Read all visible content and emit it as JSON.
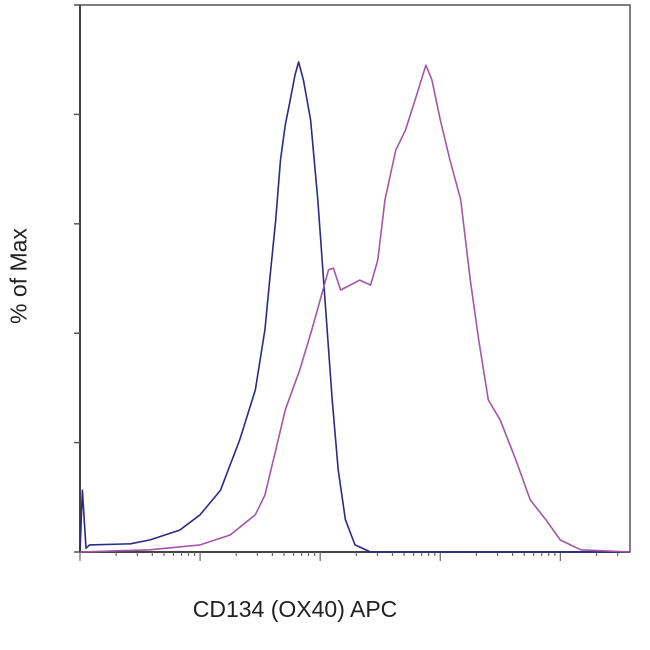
{
  "chart_data": {
    "type": "line",
    "title": "",
    "xlabel": "CD134 (OX40) APC",
    "ylabel": "% of Max",
    "x_scale": "log (decades, no tick labels shown)",
    "xlim": [
      0,
      4.58
    ],
    "ylim": [
      0,
      100
    ],
    "y_ticks": [
      0,
      20,
      40,
      60,
      80,
      100
    ],
    "x_major_ticks": [
      0,
      1,
      2,
      3,
      4
    ],
    "grid": false,
    "legend": "none",
    "series": [
      {
        "color": "#2b2b86",
        "points": [
          [
            0,
            0
          ],
          [
            0.02,
            11.3
          ],
          [
            0.05,
            0.7
          ],
          [
            0.08,
            1.3
          ],
          [
            0.42,
            1.5
          ],
          [
            0.58,
            2.2
          ],
          [
            0.83,
            4.0
          ],
          [
            1.0,
            6.8
          ],
          [
            1.17,
            11.3
          ],
          [
            1.33,
            20.5
          ],
          [
            1.46,
            29.6
          ],
          [
            1.54,
            40.6
          ],
          [
            1.58,
            49.7
          ],
          [
            1.63,
            60.7
          ],
          [
            1.67,
            71.7
          ],
          [
            1.71,
            78.1
          ],
          [
            1.75,
            82.6
          ],
          [
            1.79,
            87.2
          ],
          [
            1.82,
            89.6
          ],
          [
            1.86,
            86.3
          ],
          [
            1.92,
            79.0
          ],
          [
            1.98,
            64.4
          ],
          [
            2.04,
            46.1
          ],
          [
            2.1,
            27.8
          ],
          [
            2.15,
            15.0
          ],
          [
            2.21,
            5.9
          ],
          [
            2.29,
            1.3
          ],
          [
            2.42,
            0
          ],
          [
            4.58,
            0
          ]
        ]
      },
      {
        "color": "#a456a8",
        "points": [
          [
            0,
            0
          ],
          [
            0.58,
            0.4
          ],
          [
            1.0,
            1.3
          ],
          [
            1.25,
            3.1
          ],
          [
            1.46,
            6.8
          ],
          [
            1.54,
            10.4
          ],
          [
            1.63,
            18.6
          ],
          [
            1.71,
            26.0
          ],
          [
            1.83,
            33.3
          ],
          [
            1.93,
            40.6
          ],
          [
            2.0,
            46.1
          ],
          [
            2.07,
            51.6
          ],
          [
            2.11,
            51.9
          ],
          [
            2.17,
            47.9
          ],
          [
            2.25,
            48.8
          ],
          [
            2.33,
            49.7
          ],
          [
            2.42,
            48.8
          ],
          [
            2.48,
            53.4
          ],
          [
            2.54,
            64.4
          ],
          [
            2.63,
            73.5
          ],
          [
            2.71,
            77.1
          ],
          [
            2.79,
            82.6
          ],
          [
            2.88,
            89.0
          ],
          [
            2.93,
            86.3
          ],
          [
            3.0,
            79.0
          ],
          [
            3.08,
            71.7
          ],
          [
            3.17,
            64.4
          ],
          [
            3.25,
            49.7
          ],
          [
            3.32,
            38.8
          ],
          [
            3.4,
            27.8
          ],
          [
            3.5,
            24.1
          ],
          [
            3.63,
            16.8
          ],
          [
            3.75,
            9.5
          ],
          [
            3.88,
            5.9
          ],
          [
            4.0,
            2.2
          ],
          [
            4.17,
            0.4
          ],
          [
            4.58,
            0
          ]
        ]
      }
    ]
  }
}
